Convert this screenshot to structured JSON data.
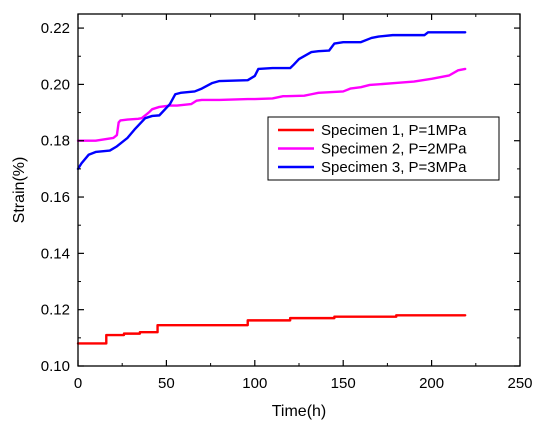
{
  "chart_data": {
    "type": "line",
    "title": "",
    "xlabel": "Time(h)",
    "ylabel": "Strain(%)",
    "xlim": [
      0,
      250
    ],
    "ylim": [
      0.1,
      0.225
    ],
    "xticks": [
      0,
      50,
      100,
      150,
      200,
      250
    ],
    "xtick_labels": [
      "0",
      "50",
      "100",
      "150",
      "200",
      "250"
    ],
    "yticks": [
      0.1,
      0.12,
      0.14,
      0.16,
      0.18,
      0.2,
      0.22
    ],
    "ytick_labels": [
      "0.10",
      "0.12",
      "0.14",
      "0.16",
      "0.18",
      "0.20",
      "0.22"
    ],
    "grid": false,
    "legend_position": "upper-right",
    "series": [
      {
        "name": "Specimen 1, P=1MPa",
        "color": "#ff0000",
        "x": [
          0,
          16,
          16,
          26,
          26,
          35,
          35,
          45,
          45,
          96,
          96,
          120,
          120,
          145,
          145,
          180,
          180,
          219
        ],
        "y": [
          0.108,
          0.108,
          0.111,
          0.111,
          0.1115,
          0.1115,
          0.112,
          0.112,
          0.1145,
          0.1145,
          0.1162,
          0.1162,
          0.117,
          0.117,
          0.1175,
          0.1175,
          0.118,
          0.118
        ]
      },
      {
        "name": "Specimen 2, P=2MPa",
        "color": "#ff00ff",
        "x": [
          0,
          10,
          15,
          20,
          22,
          23,
          24,
          28,
          34,
          36,
          38,
          40,
          42,
          46,
          52,
          56,
          64,
          67,
          70,
          80,
          96,
          100,
          110,
          116,
          118,
          128,
          132,
          136,
          150,
          154,
          160,
          165,
          180,
          190,
          200,
          210,
          215,
          219
        ],
        "y": [
          0.18,
          0.18,
          0.1805,
          0.181,
          0.182,
          0.1865,
          0.1872,
          0.1875,
          0.1878,
          0.188,
          0.189,
          0.19,
          0.1912,
          0.192,
          0.1925,
          0.1925,
          0.193,
          0.1942,
          0.1945,
          0.1945,
          0.1948,
          0.1948,
          0.195,
          0.1958,
          0.1958,
          0.196,
          0.1965,
          0.197,
          0.1975,
          0.1985,
          0.199,
          0.1998,
          0.2005,
          0.201,
          0.202,
          0.2032,
          0.205,
          0.2055
        ]
      },
      {
        "name": "Specimen 3, P=3MPa",
        "color": "#0000ff",
        "x": [
          0,
          2,
          6,
          10,
          18,
          22,
          28,
          32,
          38,
          42,
          46,
          52,
          55,
          58,
          66,
          70,
          76,
          80,
          96,
          100,
          102,
          110,
          118,
          120,
          122,
          125,
          132,
          136,
          142,
          145,
          150,
          160,
          166,
          170,
          178,
          196,
          198,
          219
        ],
        "y": [
          0.17,
          0.172,
          0.175,
          0.176,
          0.1765,
          0.178,
          0.181,
          0.184,
          0.188,
          0.1888,
          0.189,
          0.193,
          0.1965,
          0.197,
          0.1975,
          0.1985,
          0.2005,
          0.2012,
          0.2015,
          0.203,
          0.2055,
          0.2058,
          0.2058,
          0.2058,
          0.207,
          0.209,
          0.2115,
          0.2118,
          0.212,
          0.2145,
          0.215,
          0.215,
          0.2165,
          0.217,
          0.2175,
          0.2175,
          0.2185,
          0.2185
        ]
      }
    ]
  }
}
